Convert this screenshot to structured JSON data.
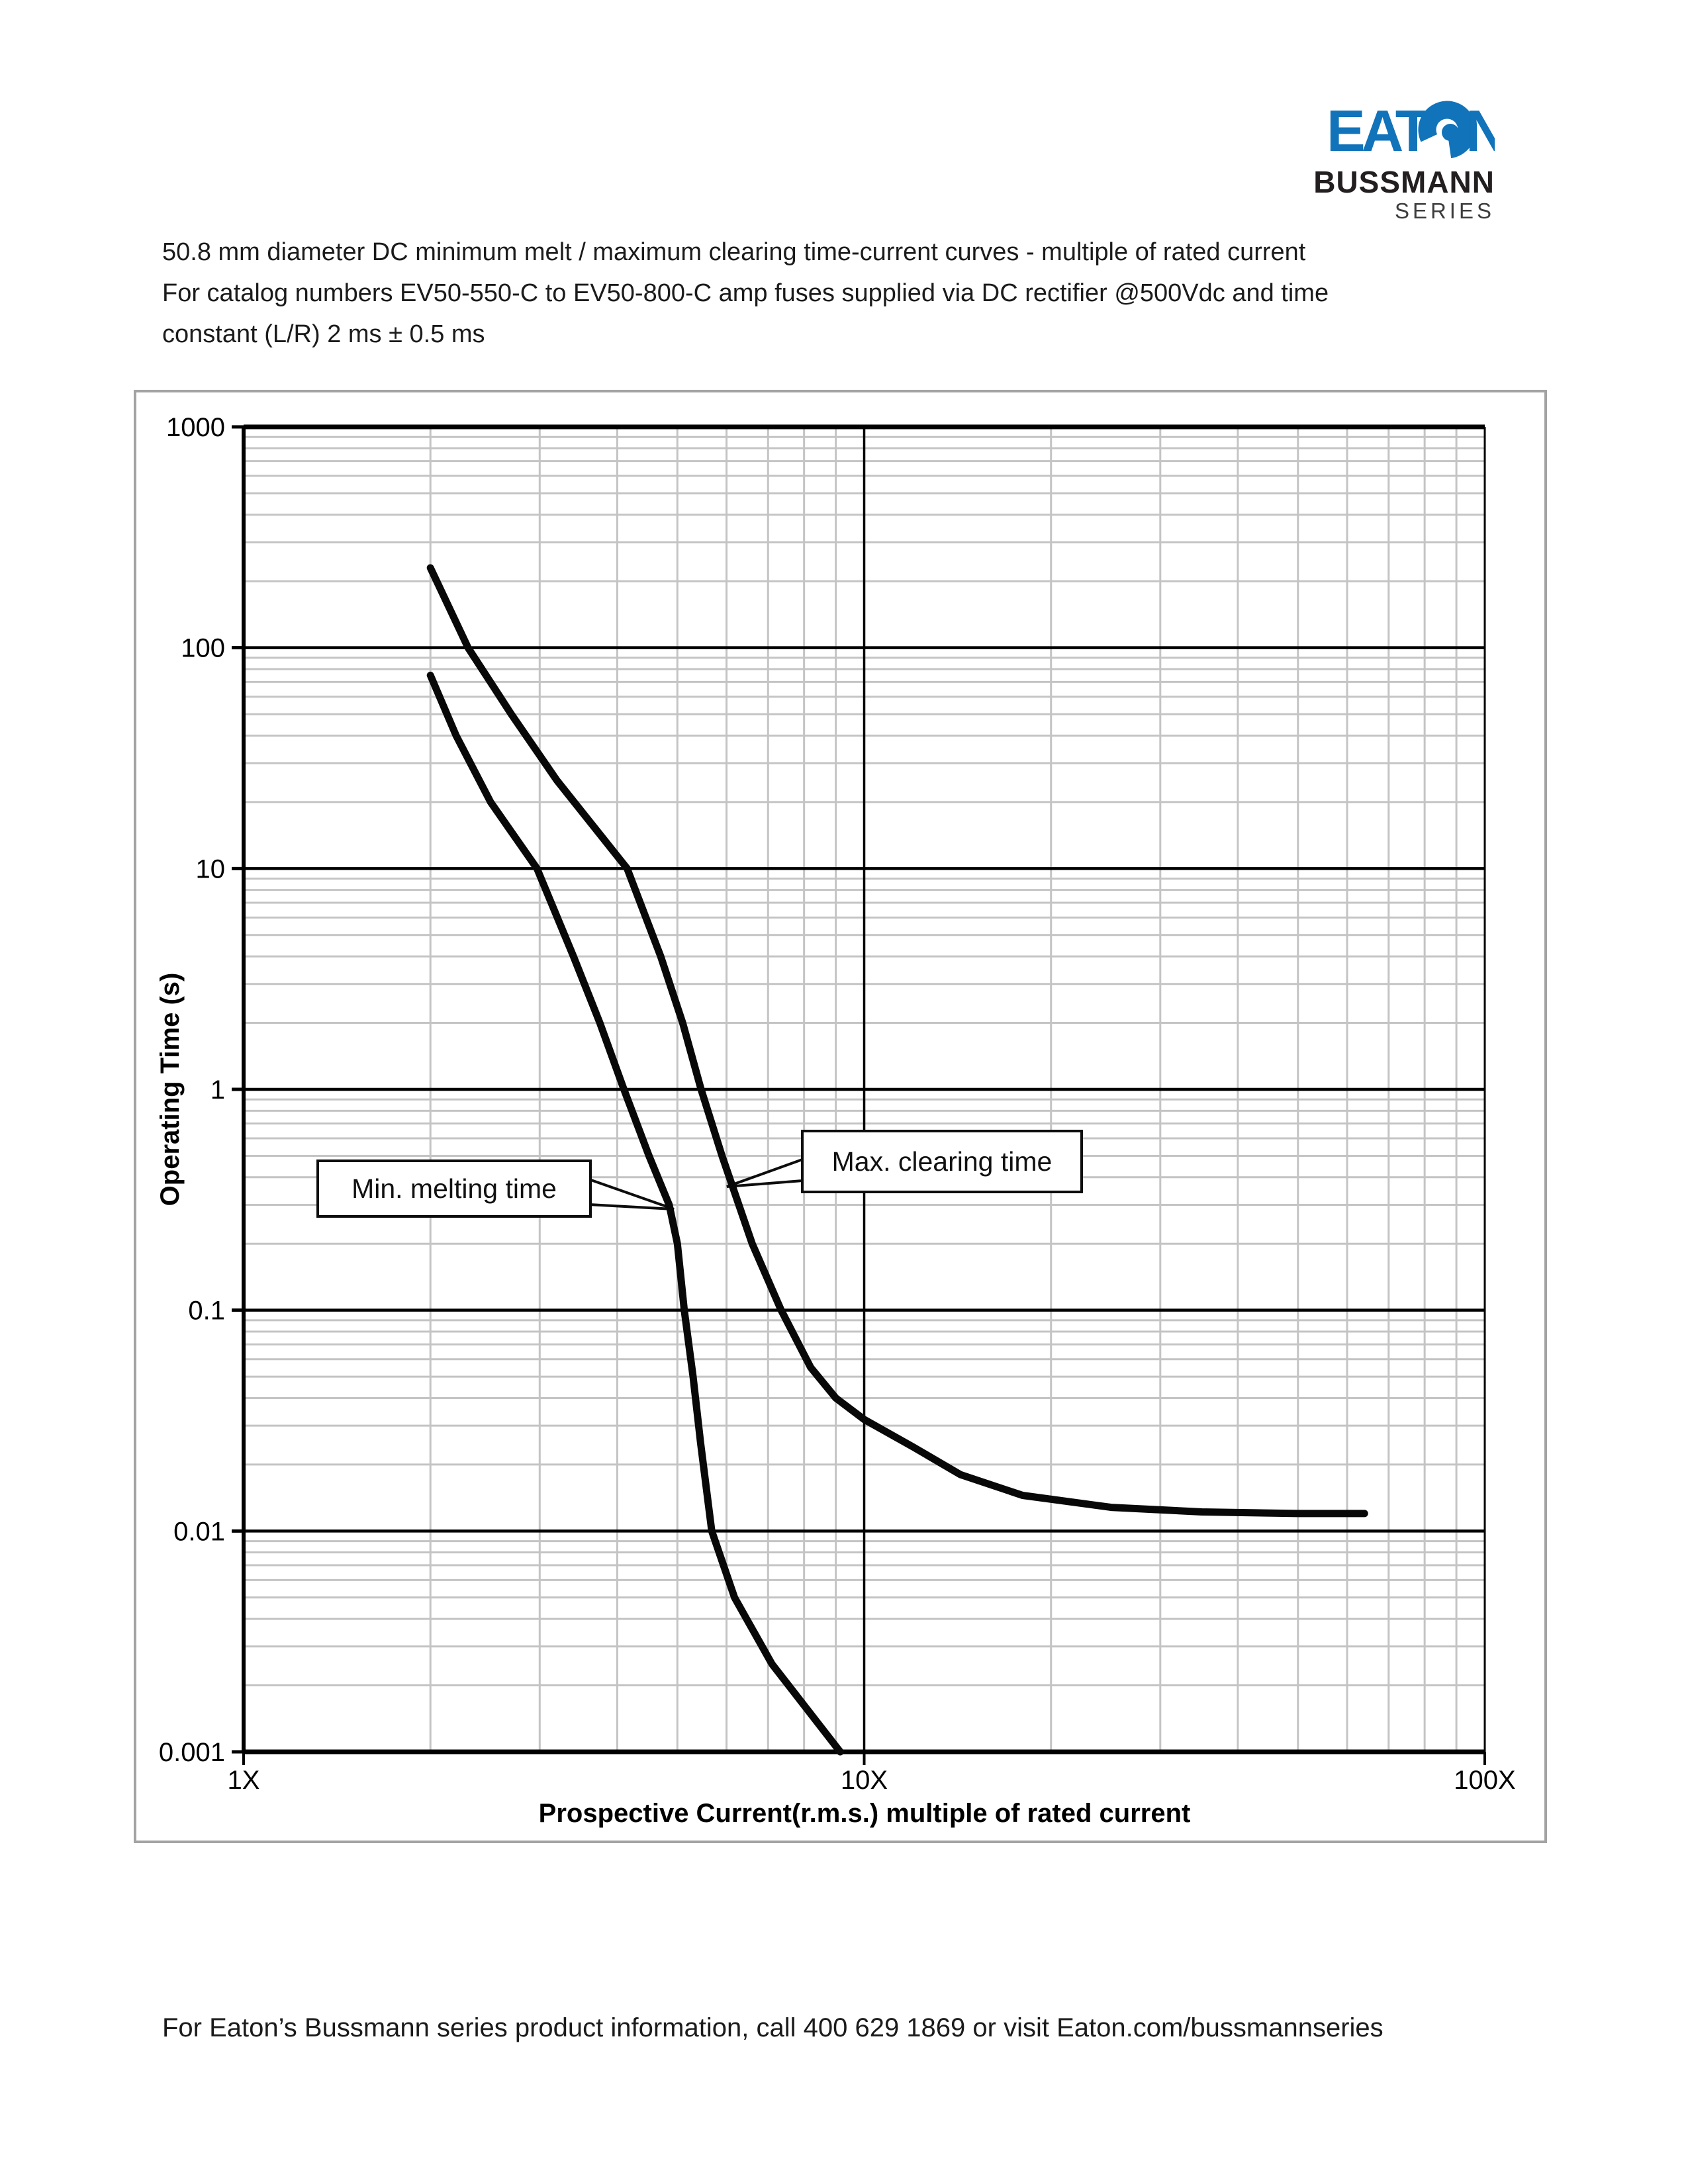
{
  "logo": {
    "brand": "EATON",
    "line1": "BUSSMANN",
    "line2": "SERIES",
    "brand_color": "#1173b9",
    "text_color": "#231f20"
  },
  "header": {
    "line1": "50.8 mm diameter DC minimum melt / maximum clearing time-current curves - multiple of rated current",
    "line2": "For catalog numbers EV50-550-C to EV50-800-C amp fuses supplied via DC rectifier @500Vdc and time",
    "line3": "constant (L/R) 2 ms ± 0.5 ms"
  },
  "footer": {
    "text": "For Eaton’s Bussmann series product information, call 400 629 1869 or visit Eaton.com/bussmannseries"
  },
  "chart_data": {
    "type": "line",
    "title": "50.8 mm diameter DC minimum melt / maximum clearing time-current curves - multiple of rated current",
    "xlabel": "Prospective Current(r.m.s.) multiple of rated current",
    "ylabel": "Operating Time (s)",
    "x_scale": "log",
    "y_scale": "log",
    "xlim": [
      1,
      100
    ],
    "ylim": [
      0.001,
      1000
    ],
    "grid": true,
    "line_color": "#080808",
    "major_grid_color": "#000000",
    "minor_grid_color": "#c4c4c4",
    "x_ticks": [
      {
        "label": "1X",
        "value": 1
      },
      {
        "label": "10X",
        "value": 10
      },
      {
        "label": "100X",
        "value": 100
      }
    ],
    "y_ticks": [
      {
        "label": "1000",
        "value": 1000
      },
      {
        "label": "100",
        "value": 100
      },
      {
        "label": "10",
        "value": 10
      },
      {
        "label": "1",
        "value": 1
      },
      {
        "label": "0.1",
        "value": 0.1
      },
      {
        "label": "0.01",
        "value": 0.01
      },
      {
        "label": "0.001",
        "value": 0.001
      }
    ],
    "series": [
      {
        "name": "Min. melting time",
        "points": [
          [
            2.0,
            75
          ],
          [
            2.2,
            40
          ],
          [
            2.5,
            20
          ],
          [
            2.97,
            10
          ],
          [
            3.4,
            4
          ],
          [
            3.75,
            2
          ],
          [
            4.1,
            1
          ],
          [
            4.5,
            0.5
          ],
          [
            4.85,
            0.3
          ],
          [
            5.0,
            0.2
          ],
          [
            5.13,
            0.1
          ],
          [
            5.3,
            0.05
          ],
          [
            5.45,
            0.025
          ],
          [
            5.68,
            0.01
          ],
          [
            6.18,
            0.005
          ],
          [
            7.1,
            0.0025
          ],
          [
            9.15,
            0.001
          ]
        ]
      },
      {
        "name": "Max. clearing time",
        "points": [
          [
            2.0,
            230
          ],
          [
            2.3,
            100
          ],
          [
            2.7,
            50
          ],
          [
            3.2,
            25
          ],
          [
            4.15,
            10
          ],
          [
            4.7,
            4
          ],
          [
            5.1,
            2
          ],
          [
            5.46,
            1
          ],
          [
            5.9,
            0.5
          ],
          [
            6.6,
            0.2
          ],
          [
            7.35,
            0.1
          ],
          [
            8.2,
            0.055
          ],
          [
            9.0,
            0.04
          ],
          [
            10.0,
            0.032
          ],
          [
            12,
            0.024
          ],
          [
            14.3,
            0.018
          ],
          [
            18,
            0.0145
          ],
          [
            25,
            0.0128
          ],
          [
            35,
            0.0122
          ],
          [
            50,
            0.012
          ],
          [
            64,
            0.012
          ]
        ]
      }
    ],
    "annotations": [
      {
        "label": "Min. melting time"
      },
      {
        "label": "Max. clearing time"
      }
    ]
  }
}
